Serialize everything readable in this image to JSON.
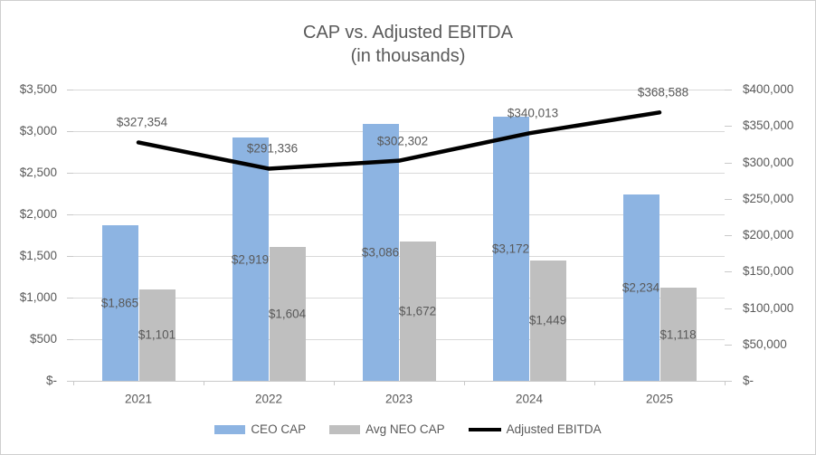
{
  "chart_data": {
    "type": "combo",
    "title": "CAP vs. Adjusted EBITDA",
    "subtitle": "(in thousands)",
    "categories": [
      "2021",
      "2022",
      "2023",
      "2024",
      "2025"
    ],
    "series": [
      {
        "name": "CEO CAP",
        "type": "bar",
        "axis": "left",
        "color": "#8DB4E2",
        "values": [
          1865,
          2919,
          3086,
          3172,
          2234
        ],
        "labels": [
          "$1,865",
          "$2,919",
          "$3,086",
          "$3,172",
          "$2,234"
        ]
      },
      {
        "name": "Avg NEO CAP",
        "type": "bar",
        "axis": "left",
        "color": "#BFBFBF",
        "values": [
          1101,
          1604,
          1672,
          1449,
          1118
        ],
        "labels": [
          "$1,101",
          "$1,604",
          "$1,672",
          "$1,449",
          "$1,118"
        ]
      },
      {
        "name": "Adjusted EBITDA",
        "type": "line",
        "axis": "right",
        "color": "#000000",
        "values": [
          327354,
          291336,
          302302,
          340013,
          368588
        ],
        "labels": [
          "$327,354",
          "$291,336",
          "$302,302",
          "$340,013",
          "$368,588"
        ]
      }
    ],
    "left_axis": {
      "min": 0,
      "max": 3500,
      "tick_labels": [
        "$-",
        "$500",
        "$1,000",
        "$1,500",
        "$2,000",
        "$2,500",
        "$3,000",
        "$3,500"
      ]
    },
    "right_axis": {
      "min": 0,
      "max": 400000,
      "tick_labels": [
        "$-",
        "$50,000",
        "$100,000",
        "$150,000",
        "$200,000",
        "$250,000",
        "$300,000",
        "$350,000",
        "$400,000"
      ]
    },
    "legend_position": "bottom",
    "grid": true,
    "colors": {
      "gridline": "#D9D9D9",
      "axis_text": "#595959",
      "title_text": "#595959",
      "border": "#CFCFCF"
    }
  }
}
